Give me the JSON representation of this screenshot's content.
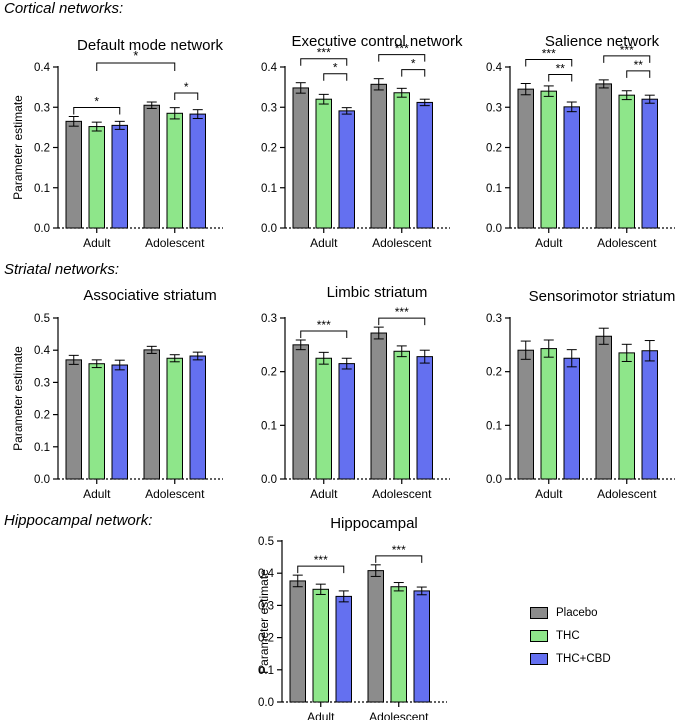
{
  "sections": {
    "cortical": "Cortical networks:",
    "striatal": "Striatal networks:",
    "hippocampal": "Hippocampal network:"
  },
  "legend": [
    {
      "name": "Placebo",
      "color": "#8c8c8c"
    },
    {
      "name": "THC",
      "color": "#8ee68a"
    },
    {
      "name": "THC+CBD",
      "color": "#6470f0"
    }
  ],
  "chart_data": [
    {
      "type": "bar",
      "title": "Default mode network",
      "ylabel": "Parameter estimate",
      "ylim": [
        0,
        0.4
      ],
      "yticks": [
        "0.0",
        "0.1",
        "0.2",
        "0.3",
        "0.4"
      ],
      "categories": [
        "Adult",
        "Adolescent"
      ],
      "series": [
        {
          "name": "Placebo",
          "values": [
            0.265,
            0.305
          ],
          "errors": [
            0.012,
            0.008
          ]
        },
        {
          "name": "THC",
          "values": [
            0.252,
            0.285
          ],
          "errors": [
            0.011,
            0.014
          ]
        },
        {
          "name": "THC+CBD",
          "values": [
            0.255,
            0.283
          ],
          "errors": [
            0.01,
            0.011
          ]
        }
      ],
      "annotations": [
        {
          "label": "*",
          "group": 0,
          "from": 0,
          "to": 2,
          "level": 0
        },
        {
          "label": "*",
          "group": 1,
          "from": 1,
          "to": 2,
          "level": 0
        },
        {
          "label": "*",
          "group": "between",
          "level": 1
        }
      ]
    },
    {
      "type": "bar",
      "title": "Executive control network",
      "ylabel": "",
      "ylim": [
        0,
        0.4
      ],
      "yticks": [
        "0.0",
        "0.1",
        "0.2",
        "0.3",
        "0.4"
      ],
      "categories": [
        "Adult",
        "Adolescent"
      ],
      "series": [
        {
          "name": "Placebo",
          "values": [
            0.348,
            0.357
          ],
          "errors": [
            0.013,
            0.014
          ]
        },
        {
          "name": "THC",
          "values": [
            0.32,
            0.336
          ],
          "errors": [
            0.012,
            0.011
          ]
        },
        {
          "name": "THC+CBD",
          "values": [
            0.291,
            0.312
          ],
          "errors": [
            0.008,
            0.008
          ]
        }
      ],
      "annotations": [
        {
          "label": "*",
          "group": 0,
          "from": 1,
          "to": 2,
          "level": 0
        },
        {
          "label": "***",
          "group": 0,
          "from": 0,
          "to": 2,
          "level": 1
        },
        {
          "label": "*",
          "group": 1,
          "from": 1,
          "to": 2,
          "level": 0
        },
        {
          "label": "***",
          "group": 1,
          "from": 0,
          "to": 2,
          "level": 1
        }
      ]
    },
    {
      "type": "bar",
      "title": "Salience network",
      "ylabel": "",
      "ylim": [
        0,
        0.4
      ],
      "yticks": [
        "0.0",
        "0.1",
        "0.2",
        "0.3",
        "0.4"
      ],
      "categories": [
        "Adult",
        "Adolescent"
      ],
      "series": [
        {
          "name": "Placebo",
          "values": [
            0.345,
            0.358
          ],
          "errors": [
            0.014,
            0.01
          ]
        },
        {
          "name": "THC",
          "values": [
            0.34,
            0.33
          ],
          "errors": [
            0.013,
            0.011
          ]
        },
        {
          "name": "THC+CBD",
          "values": [
            0.301,
            0.32
          ],
          "errors": [
            0.012,
            0.01
          ]
        }
      ],
      "annotations": [
        {
          "label": "**",
          "group": 0,
          "from": 1,
          "to": 2,
          "level": 0
        },
        {
          "label": "***",
          "group": 0,
          "from": 0,
          "to": 2,
          "level": 1
        },
        {
          "label": "**",
          "group": 1,
          "from": 1,
          "to": 2,
          "level": 0
        },
        {
          "label": "***",
          "group": 1,
          "from": 0,
          "to": 2,
          "level": 1
        }
      ]
    },
    {
      "type": "bar",
      "title": "Associative striatum",
      "ylabel": "Parameter estimate",
      "ylim": [
        0,
        0.5
      ],
      "yticks": [
        "0.0",
        "0.1",
        "0.2",
        "0.3",
        "0.4",
        "0.5"
      ],
      "categories": [
        "Adult",
        "Adolescent"
      ],
      "series": [
        {
          "name": "Placebo",
          "values": [
            0.37,
            0.401
          ],
          "errors": [
            0.014,
            0.011
          ]
        },
        {
          "name": "THC",
          "values": [
            0.358,
            0.375
          ],
          "errors": [
            0.012,
            0.011
          ]
        },
        {
          "name": "THC+CBD",
          "values": [
            0.354,
            0.382
          ],
          "errors": [
            0.015,
            0.012
          ]
        }
      ],
      "annotations": []
    },
    {
      "type": "bar",
      "title": "Limbic striatum",
      "ylabel": "",
      "ylim": [
        0,
        0.3
      ],
      "yticks": [
        "0.0",
        "0.1",
        "0.2",
        "0.3"
      ],
      "categories": [
        "Adult",
        "Adolescent"
      ],
      "series": [
        {
          "name": "Placebo",
          "values": [
            0.25,
            0.272
          ],
          "errors": [
            0.009,
            0.011
          ]
        },
        {
          "name": "THC",
          "values": [
            0.225,
            0.238
          ],
          "errors": [
            0.011,
            0.01
          ]
        },
        {
          "name": "THC+CBD",
          "values": [
            0.215,
            0.228
          ],
          "errors": [
            0.01,
            0.012
          ]
        }
      ],
      "annotations": [
        {
          "label": "***",
          "group": 0,
          "from": 0,
          "to": 2,
          "level": 0
        },
        {
          "label": "***",
          "group": 1,
          "from": 0,
          "to": 2,
          "level": 0
        }
      ]
    },
    {
      "type": "bar",
      "title": "Sensorimotor striatum",
      "ylabel": "",
      "ylim": [
        0,
        0.3
      ],
      "yticks": [
        "0.0",
        "0.1",
        "0.2",
        "0.3"
      ],
      "categories": [
        "Adult",
        "Adolescent"
      ],
      "series": [
        {
          "name": "Placebo",
          "values": [
            0.24,
            0.266
          ],
          "errors": [
            0.017,
            0.015
          ]
        },
        {
          "name": "THC",
          "values": [
            0.243,
            0.235
          ],
          "errors": [
            0.016,
            0.016
          ]
        },
        {
          "name": "THC+CBD",
          "values": [
            0.225,
            0.239
          ],
          "errors": [
            0.016,
            0.019
          ]
        }
      ],
      "annotations": []
    },
    {
      "type": "bar",
      "title": "Hippocampal",
      "ylabel": "Parameter estimate",
      "ylim": [
        0,
        0.5
      ],
      "yticks": [
        "0.0",
        "0.1",
        "0.2",
        "0.3",
        "0.4",
        "0.5"
      ],
      "categories": [
        "Adult",
        "Adolescent"
      ],
      "series": [
        {
          "name": "Placebo",
          "values": [
            0.376,
            0.408
          ],
          "errors": [
            0.018,
            0.018
          ]
        },
        {
          "name": "THC",
          "values": [
            0.35,
            0.358
          ],
          "errors": [
            0.016,
            0.013
          ]
        },
        {
          "name": "THC+CBD",
          "values": [
            0.328,
            0.345
          ],
          "errors": [
            0.017,
            0.012
          ]
        }
      ],
      "annotations": [
        {
          "label": "***",
          "group": 0,
          "from": 0,
          "to": 2,
          "level": 0
        },
        {
          "label": "***",
          "group": 1,
          "from": 0,
          "to": 2,
          "level": 0
        }
      ]
    }
  ]
}
